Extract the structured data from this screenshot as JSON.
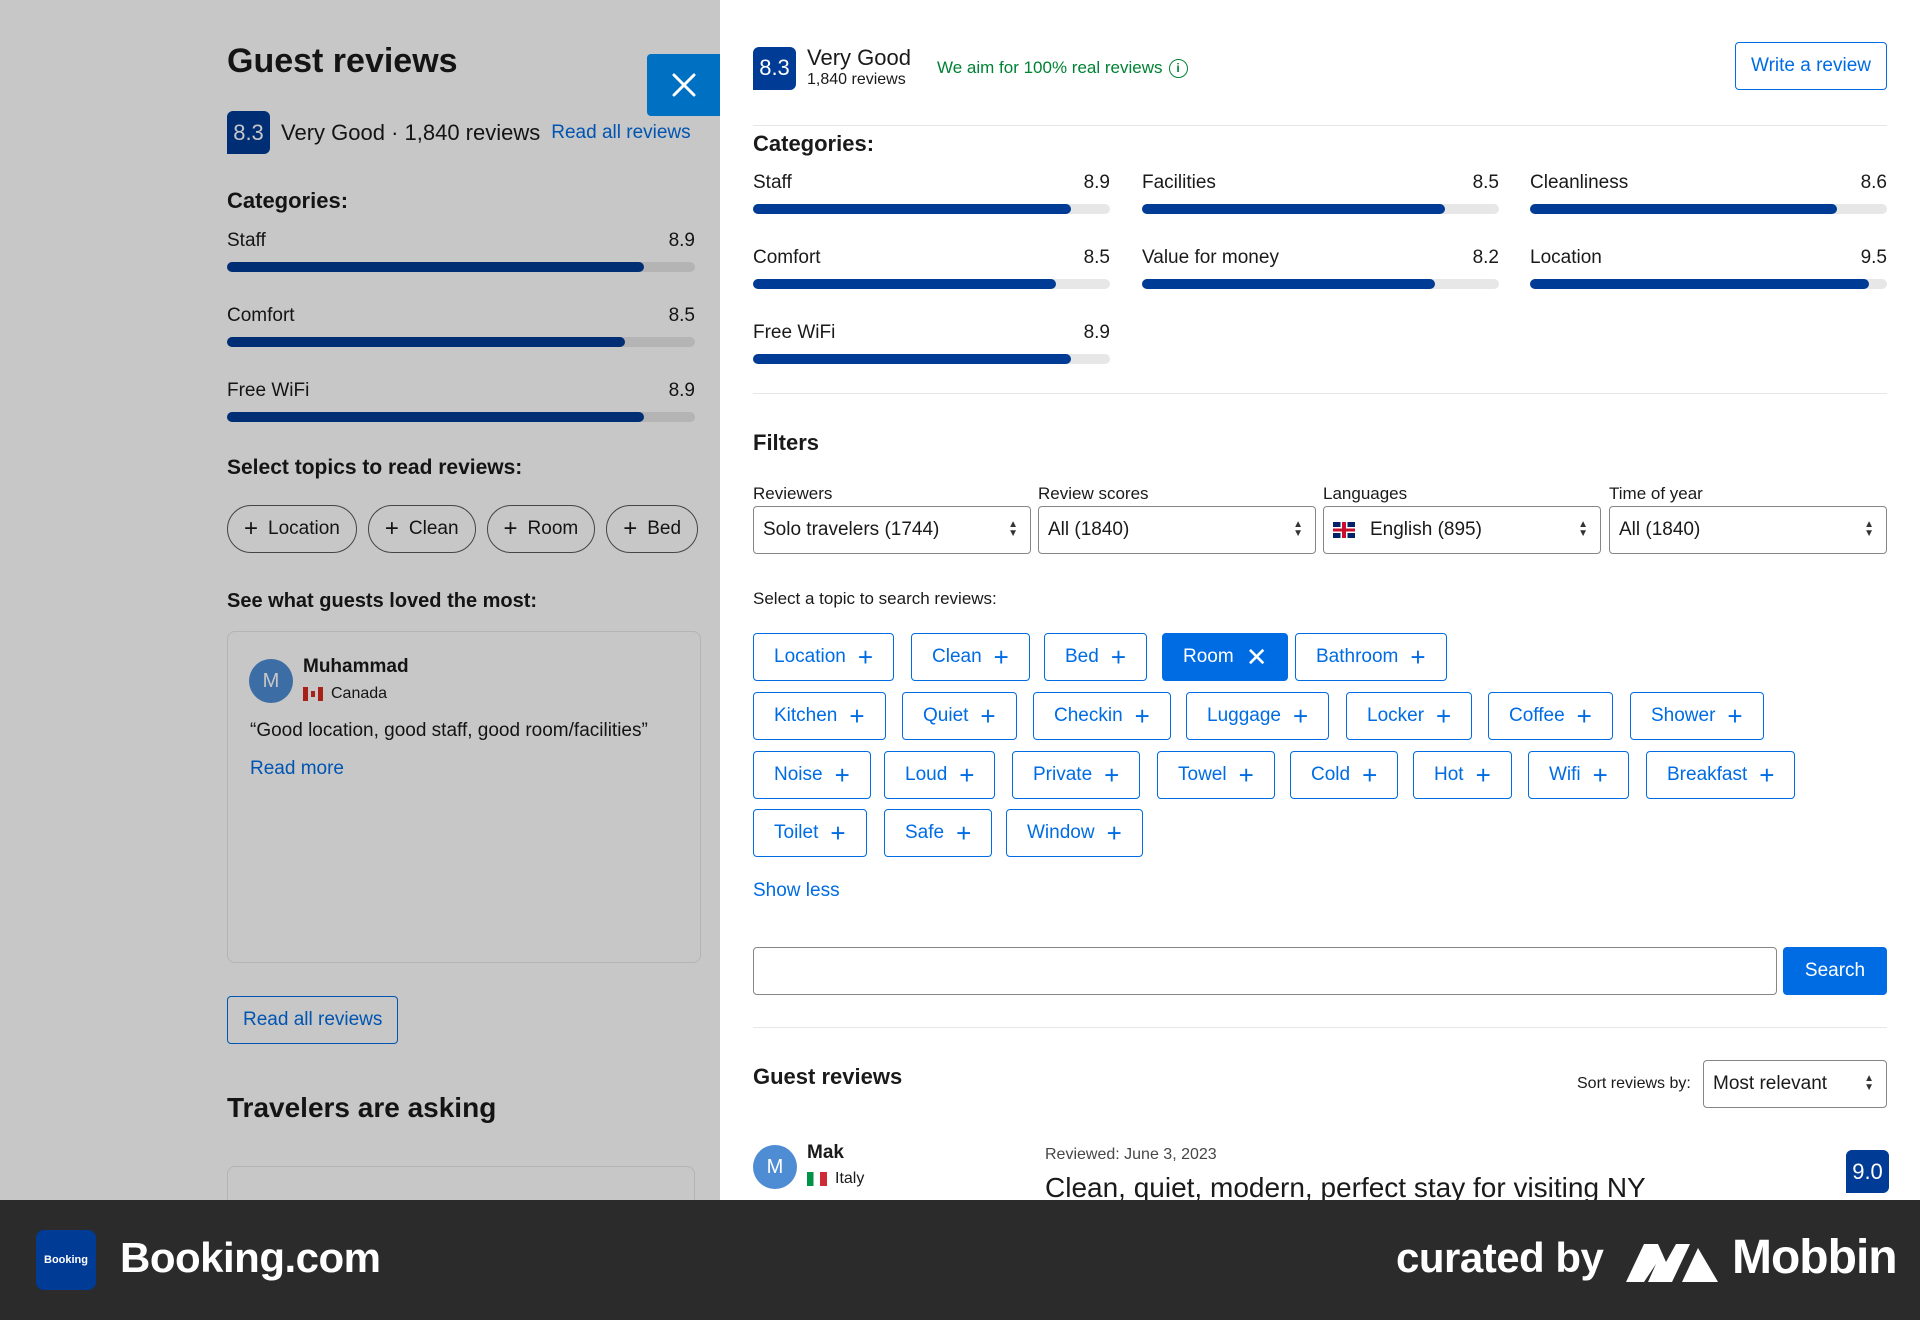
{
  "background": {
    "title": "Guest reviews",
    "score": "8.3",
    "score_text": "Very Good · 1,840 reviews",
    "read_all_link": "Read all reviews",
    "categories_heading": "Categories:",
    "categories": [
      {
        "label": "Staff",
        "score": "8.9",
        "value": 8.9
      },
      {
        "label": "Comfort",
        "score": "8.5",
        "value": 8.5
      },
      {
        "label": "Free WiFi",
        "score": "8.9",
        "value": 8.9
      }
    ],
    "topics_heading": "Select topics to read reviews:",
    "topics": [
      "Location",
      "Clean",
      "Room",
      "Bed"
    ],
    "loved_heading": "See what guests loved the most:",
    "card": {
      "initial": "M",
      "name": "Muhammad",
      "country": "Canada",
      "quote": "“Good location, good staff, good room/facilities”",
      "read_more": "Read more"
    },
    "read_all_button": "Read all reviews",
    "asking_heading": "Travelers are asking"
  },
  "panel": {
    "score": "8.3",
    "rating_word": "Very Good",
    "review_count": "1,840 reviews",
    "real_reviews_note": "We aim for 100% real reviews",
    "write_review": "Write a review",
    "categories_heading": "Categories:",
    "categories": [
      {
        "label": "Staff",
        "score": "8.9",
        "value": 8.9
      },
      {
        "label": "Facilities",
        "score": "8.5",
        "value": 8.5
      },
      {
        "label": "Cleanliness",
        "score": "8.6",
        "value": 8.6
      },
      {
        "label": "Comfort",
        "score": "8.5",
        "value": 8.5
      },
      {
        "label": "Value for money",
        "score": "8.2",
        "value": 8.2
      },
      {
        "label": "Location",
        "score": "9.5",
        "value": 9.5
      },
      {
        "label": "Free WiFi",
        "score": "8.9",
        "value": 8.9
      }
    ],
    "filters_heading": "Filters",
    "filters": [
      {
        "label": "Reviewers",
        "value": "Solo travelers (1744)"
      },
      {
        "label": "Review scores",
        "value": "All (1840)"
      },
      {
        "label": "Languages",
        "value": "English (895)"
      },
      {
        "label": "Time of year",
        "value": "All (1840)"
      }
    ],
    "topic_prompt": "Select a topic to search reviews:",
    "topics": [
      {
        "label": "Location",
        "selected": false
      },
      {
        "label": "Clean",
        "selected": false
      },
      {
        "label": "Bed",
        "selected": false
      },
      {
        "label": "Room",
        "selected": true
      },
      {
        "label": "Bathroom",
        "selected": false
      },
      {
        "label": "Kitchen",
        "selected": false
      },
      {
        "label": "Quiet",
        "selected": false
      },
      {
        "label": "Checkin",
        "selected": false
      },
      {
        "label": "Luggage",
        "selected": false
      },
      {
        "label": "Locker",
        "selected": false
      },
      {
        "label": "Coffee",
        "selected": false
      },
      {
        "label": "Shower",
        "selected": false
      },
      {
        "label": "Noise",
        "selected": false
      },
      {
        "label": "Loud",
        "selected": false
      },
      {
        "label": "Private",
        "selected": false
      },
      {
        "label": "Towel",
        "selected": false
      },
      {
        "label": "Cold",
        "selected": false
      },
      {
        "label": "Hot",
        "selected": false
      },
      {
        "label": "Wifi",
        "selected": false
      },
      {
        "label": "Breakfast",
        "selected": false
      },
      {
        "label": "Toilet",
        "selected": false
      },
      {
        "label": "Safe",
        "selected": false
      },
      {
        "label": "Window",
        "selected": false
      }
    ],
    "show_less": "Show less",
    "search_value": "",
    "search_button": "Search",
    "reviews_heading": "Guest reviews",
    "sort_label": "Sort reviews by:",
    "sort_value": "Most relevant",
    "review": {
      "initial": "M",
      "name": "Mak",
      "country": "Italy",
      "date": "Reviewed: June 3, 2023",
      "title": "Clean, quiet, modern, perfect stay for visiting NY",
      "score": "9.0"
    }
  },
  "footer": {
    "logo_text": "Booking",
    "app_name": "Booking.com",
    "curated_by": "curated by",
    "brand": "Mobbin"
  },
  "colors": {
    "accent": "#006ce4",
    "score_badge": "#003b95",
    "positive": "#008234"
  }
}
